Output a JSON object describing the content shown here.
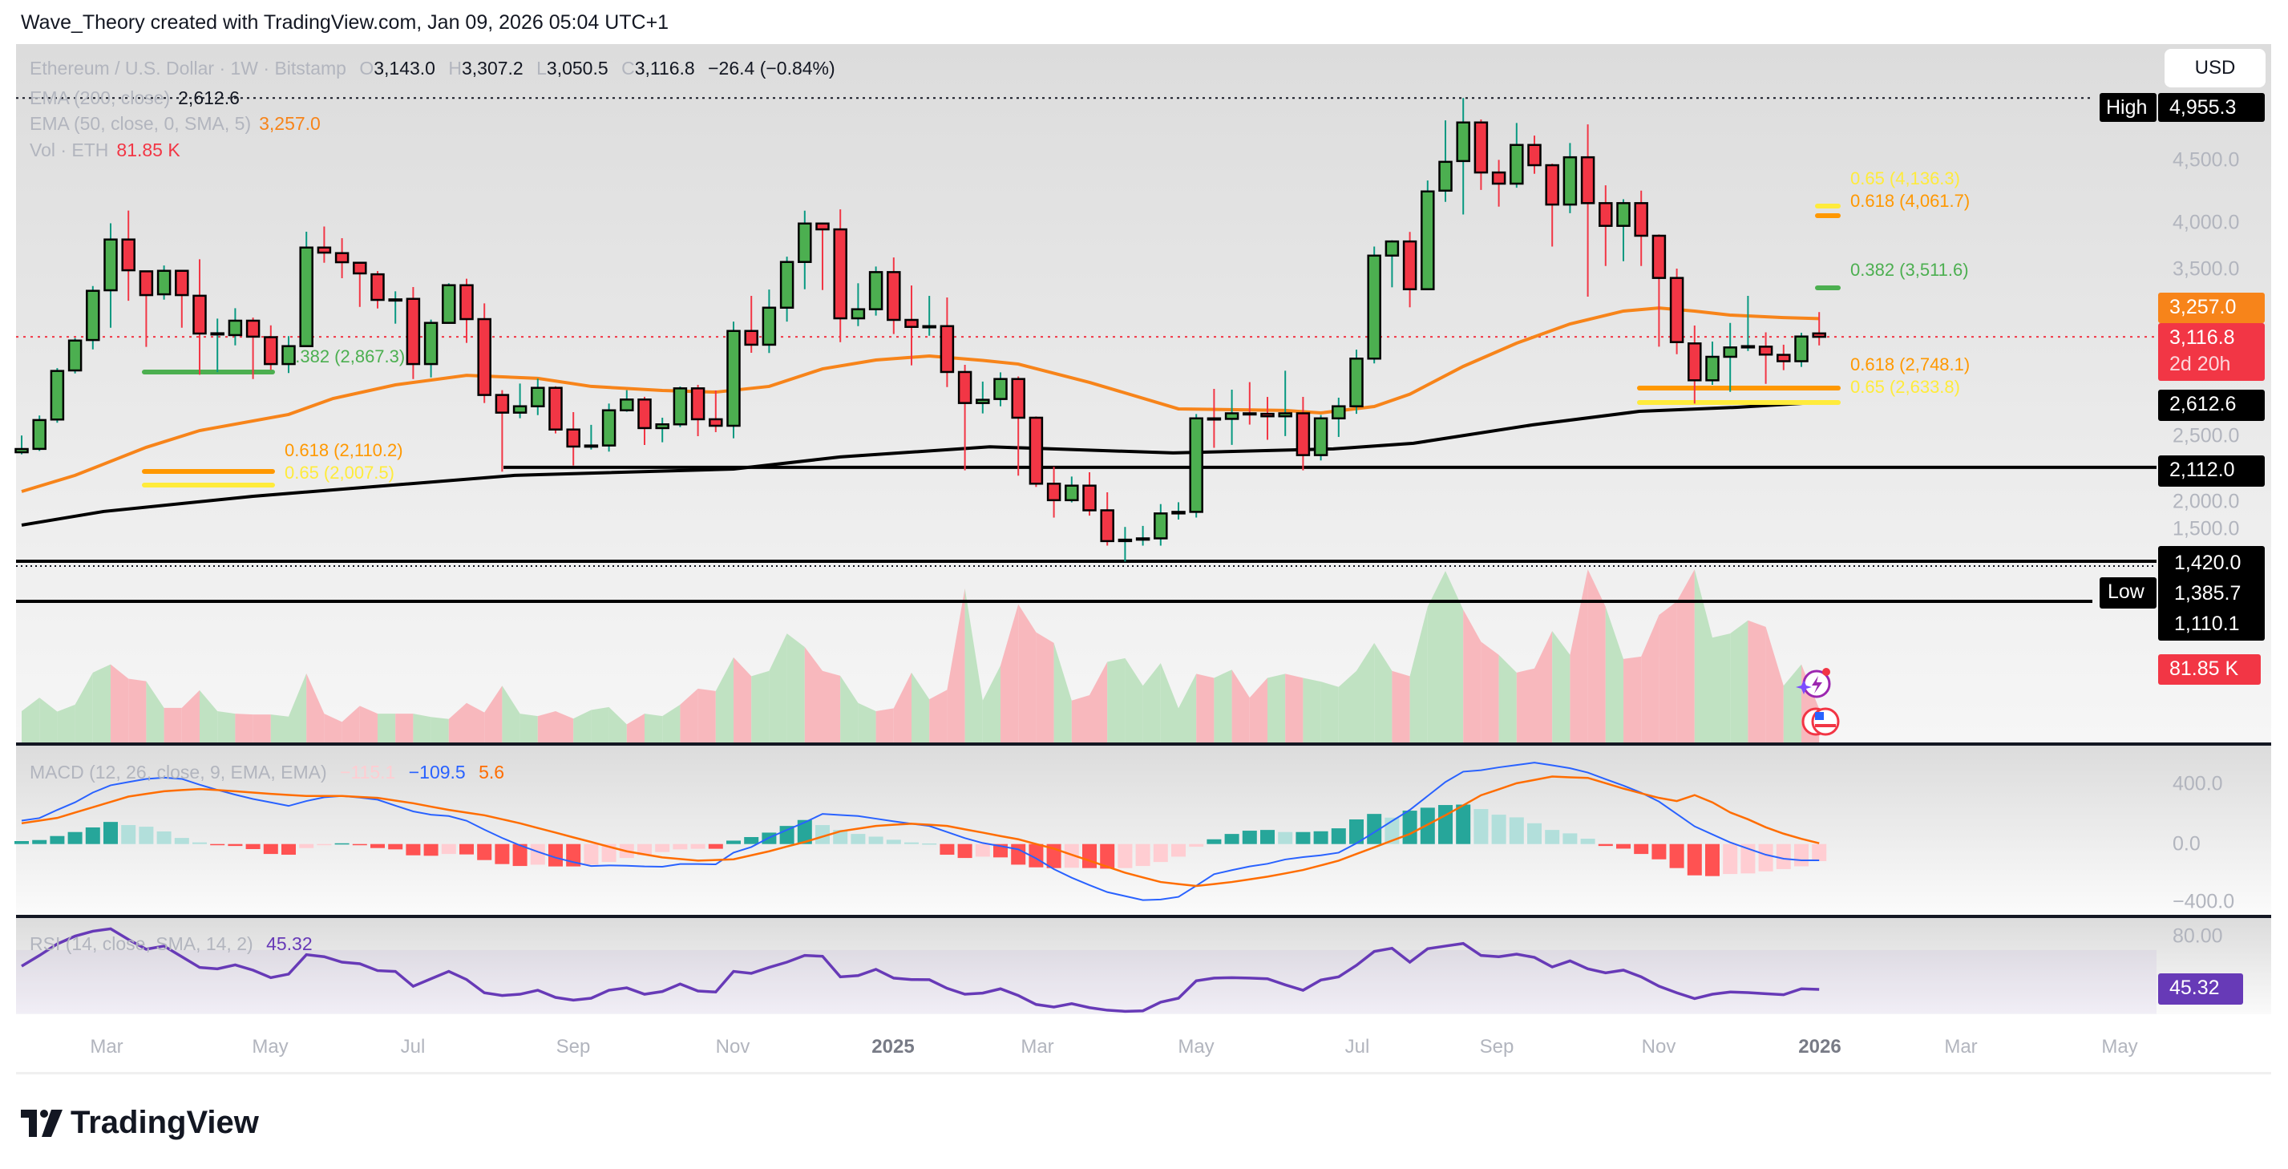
{
  "header": {
    "text": "Wave_Theory created with TradingView.com, Jan 09, 2026 05:04 UTC+1"
  },
  "legend": {
    "symbol": "Ethereum / U.S. Dollar · 1W · Bitstamp",
    "o_label": "O",
    "o": "3,143.0",
    "h_label": "H",
    "h": "3,307.2",
    "l_label": "L",
    "l": "3,050.5",
    "c_label": "C",
    "c": "3,116.8",
    "change": "−26.4 (−0.84%)",
    "ema200_label": "EMA (200, close)",
    "ema200_value": "2,612.6",
    "ema50_label": "EMA (50, close, 0, SMA, 5)",
    "ema50_value": "3,257.0",
    "vol_label": "Vol · ETH",
    "vol_value": "81.85 K"
  },
  "macd_legend": {
    "label": "MACD (12, 26, close, 9, EMA, EMA)",
    "hist": "−115.1",
    "macd": "−109.5",
    "signal": "5.6"
  },
  "rsi_legend": {
    "label": "RSI (14, close, SMA, 14, 2)",
    "value": "45.32"
  },
  "currency_button": "USD",
  "price_axis": {
    "ticks": [
      "4,500.0",
      "4,000.0",
      "3,500.0",
      "2,500.0",
      "2,000.0",
      "1,500.0"
    ],
    "high_tag": "High",
    "high_value": "4,955.3",
    "ema50_tag": "3,257.0",
    "last_price": "3,116.8",
    "countdown": "2d 20h",
    "ema200_tag": "2,612.6",
    "level_2112": "2,112.0",
    "level_1420": "1,420.0",
    "low_value": "1,385.7",
    "level_1110": "1,110.1",
    "low_tag": "Low",
    "volume_tag": "81.85 K"
  },
  "macd_axis": [
    "400.0",
    "0.0",
    "−400.0"
  ],
  "rsi_axis": {
    "tick": "80.00",
    "value_tag": "45.32"
  },
  "time_axis": [
    {
      "label": "Mar",
      "year": false
    },
    {
      "label": "May",
      "year": false
    },
    {
      "label": "Jul",
      "year": false
    },
    {
      "label": "Sep",
      "year": false
    },
    {
      "label": "Nov",
      "year": false
    },
    {
      "label": "2025",
      "year": true
    },
    {
      "label": "Mar",
      "year": false
    },
    {
      "label": "May",
      "year": false
    },
    {
      "label": "Jul",
      "year": false
    },
    {
      "label": "Sep",
      "year": false
    },
    {
      "label": "Nov",
      "year": false
    },
    {
      "label": "2026",
      "year": true
    },
    {
      "label": "Mar",
      "year": false
    },
    {
      "label": "May",
      "year": false
    }
  ],
  "fib_labels": {
    "left_382": "0.382 (2,867.3)",
    "left_618": "0.618 (2,110.2)",
    "left_65": "0.65 (2,007.5)",
    "right_65_top": "0.65 (4,136.3)",
    "right_618_top": "0.618 (4,061.7)",
    "right_382": "0.382 (3,511.6)",
    "right_618": "0.618 (2,748.1)",
    "right_65": "0.65 (2,633.8)"
  },
  "logo": "TradingView",
  "colors": {
    "up": "#4caf50",
    "down": "#f23645",
    "up_wick": "#089981",
    "down_wick": "#f23645",
    "ema50": "#f7841a",
    "ema200": "#000000",
    "fib_382": "#4caf50",
    "fib_618": "#ff9800",
    "fib_65": "#ffeb3b",
    "macd": "#2962ff",
    "signal": "#ff6d00",
    "hist_up_strong": "#26a69a",
    "hist_up_weak": "#b2dfdb",
    "hist_down_strong": "#ff5252",
    "hist_down_weak": "#ffcdd2",
    "rsi": "#673ab7",
    "vol_up": "#c0e2c2",
    "vol_down": "#f8b8bd"
  },
  "chart_data": {
    "type": "candlestick",
    "interval": "1W",
    "price_range": [
      1100,
      4955.3
    ],
    "x_tick_labels": [
      "Mar",
      "May",
      "Jul",
      "Sep",
      "Nov",
      "2025",
      "Mar",
      "May",
      "Jul",
      "Sep",
      "Nov",
      "2026",
      "Mar",
      "May"
    ],
    "candles_ohlc": [
      [
        2228,
        2357,
        2212,
        2253
      ],
      [
        2254,
        2511,
        2238,
        2476
      ],
      [
        2480,
        2876,
        2455,
        2854
      ],
      [
        2858,
        3107,
        2835,
        3088
      ],
      [
        3092,
        3508,
        3020,
        3471
      ],
      [
        3475,
        3991,
        3187,
        3866
      ],
      [
        3866,
        4089,
        3394,
        3629
      ],
      [
        3621,
        3625,
        3039,
        3438
      ],
      [
        3444,
        3666,
        3403,
        3625
      ],
      [
        3625,
        3625,
        3187,
        3438
      ],
      [
        3433,
        3714,
        2825,
        3142
      ],
      [
        3142,
        3257,
        2845,
        3144
      ],
      [
        3130,
        3337,
        3051,
        3241
      ],
      [
        3241,
        3265,
        2792,
        3118
      ],
      [
        3114,
        3205,
        2862,
        2907
      ],
      [
        2907,
        3122,
        2838,
        3045
      ],
      [
        3045,
        3926,
        3040,
        3804
      ],
      [
        3804,
        3966,
        3687,
        3765
      ],
      [
        3761,
        3876,
        3568,
        3691
      ],
      [
        3687,
        3690,
        3347,
        3605
      ],
      [
        3598,
        3623,
        3335,
        3401
      ],
      [
        3401,
        3467,
        3218,
        3405
      ],
      [
        3409,
        3500,
        2792,
        2907
      ],
      [
        2907,
        3249,
        2804,
        3224
      ],
      [
        3224,
        3529,
        3218,
        3514
      ],
      [
        3514,
        3564,
        3070,
        3253
      ],
      [
        3253,
        3374,
        2607,
        2669
      ],
      [
        2669,
        2706,
        2079,
        2533
      ],
      [
        2533,
        2757,
        2490,
        2582
      ],
      [
        2582,
        2795,
        2514,
        2724
      ],
      [
        2724,
        2736,
        2373,
        2403
      ],
      [
        2403,
        2537,
        2126,
        2272
      ],
      [
        2272,
        2439,
        2249,
        2280
      ],
      [
        2280,
        2603,
        2233,
        2551
      ],
      [
        2551,
        2706,
        2540,
        2634
      ],
      [
        2634,
        2655,
        2284,
        2414
      ],
      [
        2414,
        2494,
        2305,
        2443
      ],
      [
        2443,
        2734,
        2422,
        2720
      ],
      [
        2720,
        2747,
        2352,
        2482
      ],
      [
        2482,
        2704,
        2383,
        2432
      ],
      [
        2432,
        3234,
        2336,
        3162
      ],
      [
        3162,
        3432,
        2994,
        3056
      ],
      [
        3056,
        3481,
        2992,
        3341
      ],
      [
        3341,
        3734,
        3234,
        3693
      ],
      [
        3693,
        4088,
        3483,
        3989
      ],
      [
        3989,
        3995,
        3477,
        3944
      ],
      [
        3944,
        4098,
        3076,
        3259
      ],
      [
        3259,
        3529,
        3199,
        3329
      ],
      [
        3329,
        3658,
        3280,
        3615
      ],
      [
        3615,
        3728,
        3138,
        3247
      ],
      [
        3247,
        3512,
        2897,
        3193
      ],
      [
        3193,
        3432,
        3125,
        3199
      ],
      [
        3199,
        3420,
        2730,
        2846
      ],
      [
        2846,
        2901,
        2089,
        2607
      ],
      [
        2607,
        2772,
        2527,
        2632
      ],
      [
        2638,
        2843,
        2582,
        2792
      ],
      [
        2792,
        2812,
        2048,
        2494
      ],
      [
        2494,
        2504,
        1961,
        1986
      ],
      [
        1986,
        2116,
        1725,
        1859
      ],
      [
        1859,
        2041,
        1842,
        1971
      ],
      [
        1971,
        2074,
        1740,
        1781
      ],
      [
        1781,
        1920,
        1509,
        1544
      ],
      [
        1544,
        1653,
        1386,
        1555
      ],
      [
        1555,
        1661,
        1509,
        1565
      ],
      [
        1565,
        1829,
        1509,
        1757
      ],
      [
        1757,
        1843,
        1710,
        1769
      ],
      [
        1769,
        2522,
        1725,
        2489
      ],
      [
        2489,
        2716,
        2262,
        2485
      ],
      [
        2485,
        2710,
        2285,
        2528
      ],
      [
        2528,
        2768,
        2441,
        2524
      ],
      [
        2524,
        2654,
        2324,
        2505
      ],
      [
        2505,
        2856,
        2353,
        2528
      ],
      [
        2528,
        2654,
        2089,
        2206
      ],
      [
        2206,
        2515,
        2165,
        2489
      ],
      [
        2489,
        2648,
        2346,
        2582
      ],
      [
        2582,
        3018,
        2524,
        2949
      ],
      [
        2949,
        3812,
        2912,
        3742
      ],
      [
        3742,
        3860,
        3498,
        3851
      ],
      [
        3851,
        3924,
        3344,
        3483
      ],
      [
        3483,
        4320,
        3480,
        4236
      ],
      [
        4242,
        4783,
        4156,
        4464
      ],
      [
        4470,
        4955.3,
        4059,
        4767
      ],
      [
        4767,
        4790,
        4248,
        4382
      ],
      [
        4382,
        4479,
        4119,
        4296
      ],
      [
        4296,
        4763,
        4265,
        4594
      ],
      [
        4594,
        4666,
        4372,
        4438
      ],
      [
        4438,
        4450,
        3812,
        4135
      ],
      [
        4135,
        4609,
        4069,
        4499
      ],
      [
        4499,
        4752,
        3426,
        4146
      ],
      [
        4146,
        4283,
        3662,
        3971
      ],
      [
        3971,
        4176,
        3699,
        4146
      ],
      [
        4146,
        4242,
        3662,
        3895
      ],
      [
        3895,
        3905,
        3041,
        3570
      ],
      [
        3570,
        3642,
        2983,
        3076
      ],
      [
        3066,
        3204,
        2603,
        2782
      ],
      [
        2782,
        3080,
        2747,
        2963
      ],
      [
        2963,
        3224,
        2693,
        3035
      ],
      [
        3035,
        3432,
        3008,
        3045
      ],
      [
        3041,
        3151,
        2755,
        2980
      ],
      [
        2978,
        3056,
        2860,
        2929
      ],
      [
        2929,
        3148,
        2885,
        3119
      ],
      [
        3143.0,
        3307.2,
        3050.5,
        3116.8
      ]
    ],
    "ema50_points": [
      [
        0,
        1926
      ],
      [
        3,
        2050
      ],
      [
        7,
        2266
      ],
      [
        10,
        2395
      ],
      [
        15,
        2519
      ],
      [
        17.5,
        2642
      ],
      [
        21,
        2747
      ],
      [
        25,
        2820
      ],
      [
        29,
        2797
      ],
      [
        32,
        2735
      ],
      [
        36,
        2704
      ],
      [
        39,
        2691
      ],
      [
        42,
        2735
      ],
      [
        45,
        2870
      ],
      [
        48,
        2938
      ],
      [
        51,
        2969
      ],
      [
        54,
        2935
      ],
      [
        56,
        2907
      ],
      [
        60,
        2766
      ],
      [
        65,
        2562
      ],
      [
        71,
        2550
      ],
      [
        73,
        2531
      ],
      [
        76,
        2580
      ],
      [
        78,
        2675
      ],
      [
        81,
        2889
      ],
      [
        84,
        3068
      ],
      [
        87,
        3216
      ],
      [
        90,
        3315
      ],
      [
        92,
        3339
      ],
      [
        94,
        3315
      ],
      [
        96,
        3284
      ],
      [
        99,
        3265
      ],
      [
        101,
        3257.0
      ]
    ],
    "ema200_points": [
      [
        0,
        1667
      ],
      [
        4.6,
        1772
      ],
      [
        13,
        1889
      ],
      [
        27.7,
        2050
      ],
      [
        40,
        2099
      ],
      [
        46,
        2192
      ],
      [
        54.4,
        2270
      ],
      [
        64.7,
        2223
      ],
      [
        73.7,
        2254
      ],
      [
        78.2,
        2297
      ],
      [
        84.9,
        2439
      ],
      [
        90.9,
        2543
      ],
      [
        96.4,
        2574
      ],
      [
        101,
        2612.6
      ]
    ],
    "horizontal_levels": [
      2112.0,
      1420.0,
      1110.1
    ],
    "high": 4955.3,
    "low": 1385.7,
    "last": 3116.8,
    "fib_levels": [
      {
        "ratio": 0.382,
        "price": 2867.3,
        "group": "left"
      },
      {
        "ratio": 0.618,
        "price": 2110.2,
        "group": "left"
      },
      {
        "ratio": 0.65,
        "price": 2007.5,
        "group": "left"
      },
      {
        "ratio": 0.65,
        "price": 4136.3,
        "group": "right-top"
      },
      {
        "ratio": 0.618,
        "price": 4061.7,
        "group": "right-top"
      },
      {
        "ratio": 0.382,
        "price": 3511.6,
        "group": "right-top"
      },
      {
        "ratio": 0.618,
        "price": 2748.1,
        "group": "right-bottom"
      },
      {
        "ratio": 0.65,
        "price": 2633.8,
        "group": "right-bottom"
      }
    ],
    "volume_k": [
      76,
      109,
      75,
      92,
      170,
      190,
      155,
      149,
      84,
      84,
      127,
      76,
      70,
      68,
      68,
      63,
      168,
      70,
      50,
      89,
      70,
      70,
      70,
      62,
      57,
      96,
      73,
      138,
      70,
      64,
      76,
      58,
      79,
      86,
      44,
      70,
      64,
      92,
      131,
      125,
      207,
      161,
      174,
      265,
      232,
      174,
      162,
      96,
      76,
      83,
      170,
      105,
      128,
      375,
      102,
      187,
      336,
      268,
      242,
      102,
      115,
      196,
      205,
      138,
      193,
      83,
      167,
      157,
      177,
      109,
      157,
      167,
      157,
      148,
      135,
      174,
      242,
      174,
      161,
      330,
      417,
      323,
      245,
      213,
      170,
      180,
      271,
      213,
      421,
      330,
      203,
      209,
      310,
      343,
      421,
      255,
      265,
      297,
      281,
      138,
      190,
      81.85
    ],
    "macd": [
      158,
      175,
      230,
      281,
      347,
      396,
      418,
      439,
      448,
      439,
      400,
      365,
      333,
      304,
      281,
      257,
      290,
      315,
      324,
      313,
      299,
      259,
      220,
      198,
      189,
      157,
      97,
      41,
      -9,
      -52,
      -92,
      -122,
      -148,
      -144,
      -146,
      -151,
      -153,
      -135,
      -135,
      -137,
      -58,
      -20,
      43,
      95,
      146,
      203,
      196,
      189,
      171,
      153,
      137,
      122,
      81,
      40,
      7,
      -14,
      -36,
      -97,
      -169,
      -227,
      -277,
      -324,
      -351,
      -378,
      -374,
      -356,
      -281,
      -203,
      -176,
      -151,
      -133,
      -104,
      -88,
      -76,
      -58,
      5,
      79,
      155,
      230,
      324,
      418,
      488,
      498,
      517,
      533,
      549,
      531,
      511,
      482,
      437,
      394,
      346,
      286,
      203,
      119,
      65,
      11,
      -31,
      -72,
      -99,
      -110,
      -109.5
    ],
    "signal": [
      140,
      158,
      176,
      212,
      248,
      284,
      320,
      338,
      356,
      364,
      371,
      364,
      356,
      347,
      338,
      331,
      324,
      324,
      324,
      317,
      311,
      293,
      275,
      252,
      230,
      212,
      194,
      167,
      140,
      108,
      77,
      45,
      14,
      -18,
      -49,
      -70,
      -90,
      -101,
      -112,
      -108,
      -103,
      -76,
      -49,
      -17,
      14,
      50,
      86,
      104,
      122,
      130,
      137,
      130,
      122,
      99,
      77,
      54,
      32,
      0,
      -31,
      -72,
      -112,
      -153,
      -193,
      -225,
      -256,
      -270,
      -283,
      -270,
      -256,
      -238,
      -220,
      -198,
      -175,
      -144,
      -112,
      -67,
      -22,
      23,
      68,
      131,
      194,
      261,
      329,
      369,
      410,
      432,
      455,
      450,
      446,
      410,
      374,
      342,
      311,
      290,
      330,
      281,
      213,
      167,
      113,
      70,
      35,
      5.6
    ],
    "histogram": [
      20,
      27,
      54,
      81,
      112,
      149,
      128,
      117,
      85,
      41,
      11,
      -2,
      -13,
      -34,
      -67,
      -72,
      -27,
      -5,
      5,
      -7,
      -27,
      -36,
      -76,
      -79,
      -67,
      -70,
      -108,
      -135,
      -148,
      -139,
      -151,
      -151,
      -139,
      -121,
      -94,
      -76,
      -54,
      -36,
      -32,
      -32,
      23,
      47,
      77,
      122,
      162,
      128,
      95,
      68,
      50,
      29,
      11,
      4,
      -72,
      -94,
      -85,
      -90,
      -139,
      -157,
      -162,
      -160,
      -162,
      -166,
      -162,
      -148,
      -121,
      -85,
      -18,
      32,
      68,
      90,
      95,
      81,
      81,
      86,
      106,
      166,
      203,
      178,
      225,
      245,
      263,
      266,
      236,
      198,
      180,
      140,
      95,
      72,
      36,
      -13,
      -31,
      -67,
      -103,
      -162,
      -211,
      -216,
      -202,
      -198,
      -184,
      -169,
      -150,
      -115.1
    ],
    "rsi": [
      59.9,
      66.6,
      73.8,
      78.7,
      81.8,
      83.3,
      76.6,
      70.5,
      72.5,
      65.8,
      59.1,
      58.2,
      60.7,
      57.4,
      52.7,
      54.9,
      67.1,
      65.8,
      62.4,
      61.4,
      57.1,
      56.6,
      47.3,
      52.0,
      56.6,
      51.5,
      43.2,
      41.5,
      42.3,
      44.8,
      40.3,
      38.6,
      39.8,
      44.8,
      46.3,
      42.3,
      44.0,
      48.7,
      44.3,
      43.7,
      56.6,
      55.4,
      59.1,
      62.4,
      66.6,
      66.1,
      53.2,
      54.0,
      57.9,
      52.4,
      51.5,
      51.4,
      46.0,
      42.3,
      43.0,
      45.7,
      41.5,
      35.9,
      34.3,
      36.4,
      33.9,
      32.3,
      31.6,
      31.9,
      37.3,
      39.8,
      50.7,
      52.4,
      52.7,
      52.4,
      52.0,
      48.2,
      44.8,
      51.2,
      53.2,
      60.4,
      69.1,
      71.1,
      62.4,
      70.8,
      72.5,
      74.1,
      66.6,
      65.8,
      67.4,
      65.4,
      59.4,
      63.2,
      58.2,
      55.7,
      57.4,
      53.2,
      47.3,
      43.2,
      39.6,
      42.3,
      43.7,
      43.3,
      42.6,
      42.0,
      45.7,
      45.32
    ],
    "macd_range": [
      -400,
      400
    ],
    "rsi_band": [
      30,
      70
    ]
  }
}
